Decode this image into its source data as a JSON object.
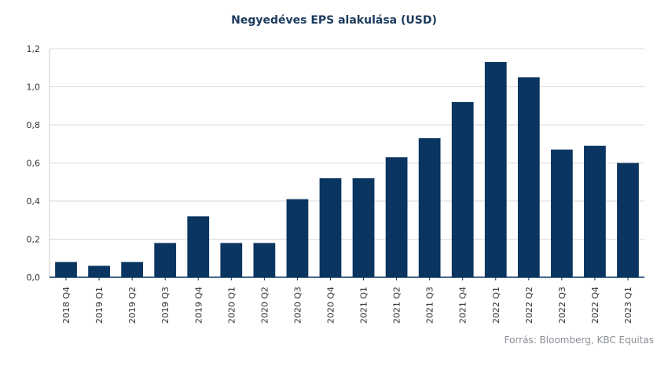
{
  "chart_data": {
    "type": "bar",
    "title": "Negyedéves EPS alakulása (USD)",
    "categories": [
      "2018 Q4",
      "2019 Q1",
      "2019 Q2",
      "2019 Q3",
      "2019 Q4",
      "2020 Q1",
      "2020 Q2",
      "2020 Q3",
      "2020 Q4",
      "2021 Q1",
      "2021 Q2",
      "2021 Q3",
      "2021 Q4",
      "2022 Q1",
      "2022 Q2",
      "2022 Q3",
      "2022 Q4",
      "2023 Q1"
    ],
    "values": [
      0.08,
      0.06,
      0.08,
      0.18,
      0.32,
      0.18,
      0.18,
      0.41,
      0.52,
      0.52,
      0.63,
      0.73,
      0.92,
      1.13,
      1.05,
      0.67,
      0.69,
      0.6
    ],
    "ylim": [
      0,
      1.2
    ],
    "yticks": [
      "0,0",
      "0,2",
      "0,4",
      "0,6",
      "0,8",
      "1,0",
      "1,2"
    ],
    "xlabel": "",
    "ylabel": "",
    "bar_color": "#0a3560",
    "grid": true
  },
  "source": "Forrás: Bloomberg, KBC Equitas"
}
